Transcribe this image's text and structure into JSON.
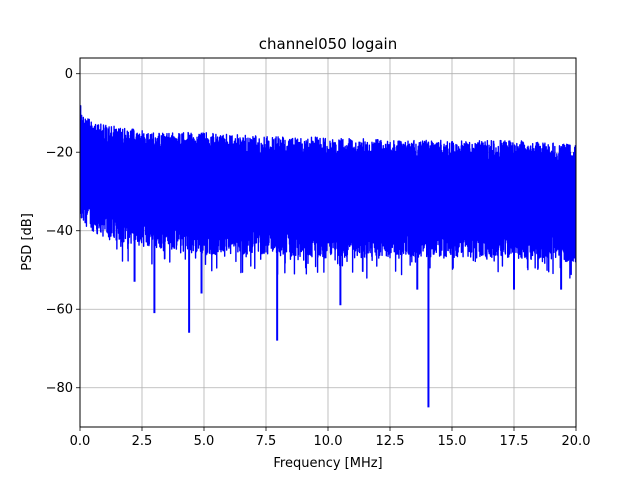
{
  "chart_data": {
    "type": "line",
    "title": "channel050 logain",
    "xlabel": "Frequency [MHz]",
    "ylabel": "PSD [dB]",
    "xlim": [
      0,
      20
    ],
    "ylim": [
      -90,
      4
    ],
    "xticks": [
      0,
      2.5,
      5,
      7.5,
      10,
      12.5,
      15,
      17.5,
      20
    ],
    "xtick_labels": [
      "0.0",
      "2.5",
      "5.0",
      "7.5",
      "10.0",
      "12.5",
      "15.0",
      "17.5",
      "20.0"
    ],
    "yticks": [
      0,
      -20,
      -40,
      -60,
      -80
    ],
    "ytick_labels": [
      "0",
      "−20",
      "−40",
      "−60",
      "−80"
    ],
    "grid": true,
    "line_color": "#0000ff",
    "series": [
      {
        "description": "dense noisy power spectral density trace",
        "upper_envelope": {
          "x": [
            0,
            0.05,
            0.2,
            0.5,
            1,
            2,
            3,
            5,
            7.5,
            10,
            12.5,
            15,
            17.5,
            20
          ],
          "y": [
            -5,
            -9,
            -11,
            -12,
            -13,
            -14,
            -15,
            -15,
            -16,
            -16,
            -17,
            -17,
            -17,
            -18
          ]
        },
        "lower_envelope": {
          "x": [
            0,
            1,
            2.5,
            5,
            7.5,
            10,
            12.5,
            15,
            17.5,
            20
          ],
          "y": [
            -38,
            -42,
            -44,
            -46,
            -46,
            -47,
            -47,
            -47,
            -47,
            -48
          ]
        },
        "deep_notches": [
          {
            "x": 3.0,
            "y": -61
          },
          {
            "x": 4.4,
            "y": -66
          },
          {
            "x": 7.95,
            "y": -68
          },
          {
            "x": 14.05,
            "y": -85
          },
          {
            "x": 10.5,
            "y": -59
          },
          {
            "x": 4.9,
            "y": -56
          },
          {
            "x": 2.2,
            "y": -53
          },
          {
            "x": 13.6,
            "y": -55
          },
          {
            "x": 17.5,
            "y": -55
          },
          {
            "x": 19.4,
            "y": -55
          }
        ]
      }
    ]
  }
}
